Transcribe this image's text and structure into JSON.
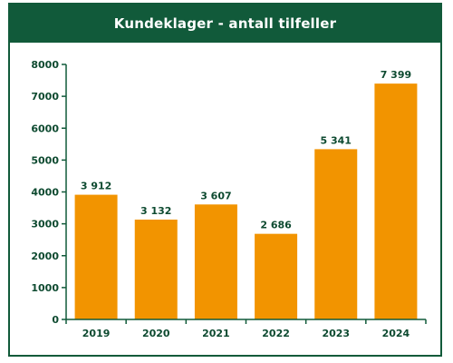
{
  "chart_data": {
    "type": "bar",
    "title": "Kundeklager - antall tilfeller",
    "categories": [
      "2019",
      "2020",
      "2021",
      "2022",
      "2023",
      "2024"
    ],
    "values": [
      3912,
      3132,
      3607,
      2686,
      5341,
      7399
    ],
    "value_labels": [
      "3 912",
      "3 132",
      "3 607",
      "2 686",
      "5 341",
      "7 399"
    ],
    "ylim": [
      0,
      8000
    ],
    "yticks": [
      0,
      1000,
      2000,
      3000,
      4000,
      5000,
      6000,
      7000,
      8000
    ],
    "xlabel": "",
    "ylabel": "",
    "grid": false,
    "colors": {
      "bar": "#f29400",
      "header": "#115a3a",
      "axis": "#115a3a",
      "text": "#0d4a30"
    }
  }
}
